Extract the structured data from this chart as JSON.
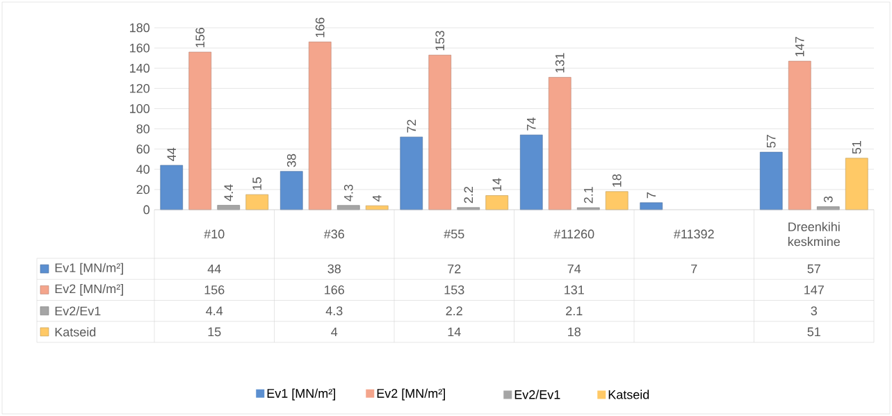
{
  "chart_data": {
    "type": "bar",
    "categories": [
      "#10",
      "#36",
      "#55",
      "#11260",
      "#11392",
      "Dreenkihi keskmine"
    ],
    "series": [
      {
        "name": "Ev1 [MN/m²]",
        "color": "#5b8fd0",
        "values": [
          44,
          38,
          72,
          74,
          7,
          57
        ],
        "value_labels": [
          "44",
          "38",
          "72",
          "74",
          "7",
          "57"
        ]
      },
      {
        "name": "Ev2 [MN/m²]",
        "color": "#f4a58c",
        "values": [
          156,
          166,
          153,
          131,
          null,
          147
        ],
        "value_labels": [
          "156",
          "166",
          "153",
          "131",
          null,
          "147"
        ]
      },
      {
        "name": "Ev2/Ev1",
        "color": "#a5a5a5",
        "values": [
          4.4,
          4.3,
          2.2,
          2.1,
          null,
          3
        ],
        "value_labels": [
          "4.4",
          "4.3",
          "2.2",
          "2.1",
          null,
          "3"
        ]
      },
      {
        "name": "Katseid",
        "color": "#ffc966",
        "values": [
          15,
          4,
          14,
          18,
          null,
          51
        ],
        "value_labels": [
          "15",
          "4",
          "14",
          "18",
          null,
          "51"
        ]
      }
    ],
    "ylim": [
      0,
      180
    ],
    "yticks": [
      0,
      20,
      40,
      60,
      80,
      100,
      120,
      140,
      160,
      180
    ],
    "grid": "y",
    "legend": "bottom",
    "data_labels": true
  }
}
